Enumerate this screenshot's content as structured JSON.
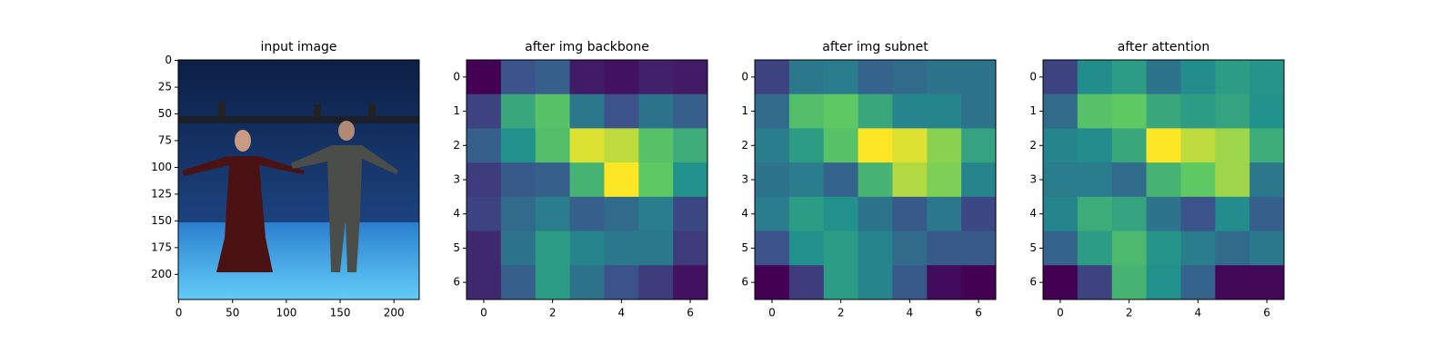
{
  "chart_data": [
    {
      "type": "image",
      "title": "input image",
      "xlim": [
        -0.5,
        223.5
      ],
      "ylim": [
        223.5,
        -0.5
      ],
      "xticks": [
        0,
        50,
        100,
        150,
        200
      ],
      "yticks": [
        0,
        25,
        50,
        75,
        100,
        125,
        150,
        175,
        200
      ]
    },
    {
      "type": "heatmap",
      "title": "after img backbone",
      "colormap": "viridis",
      "xlim": [
        -0.5,
        6.5
      ],
      "ylim": [
        6.5,
        -0.5
      ],
      "xticks": [
        0,
        2,
        4,
        6
      ],
      "yticks": [
        0,
        1,
        2,
        3,
        4,
        5,
        6
      ],
      "values": [
        [
          0.0,
          0.25,
          0.3,
          0.08,
          0.05,
          0.1,
          0.08
        ],
        [
          0.2,
          0.6,
          0.72,
          0.4,
          0.25,
          0.38,
          0.3
        ],
        [
          0.3,
          0.5,
          0.7,
          0.95,
          0.9,
          0.72,
          0.62
        ],
        [
          0.18,
          0.28,
          0.3,
          0.65,
          1.0,
          0.75,
          0.5
        ],
        [
          0.2,
          0.35,
          0.42,
          0.3,
          0.35,
          0.42,
          0.22
        ],
        [
          0.12,
          0.38,
          0.55,
          0.45,
          0.4,
          0.4,
          0.18
        ],
        [
          0.12,
          0.3,
          0.55,
          0.38,
          0.25,
          0.18,
          0.05
        ]
      ]
    },
    {
      "type": "heatmap",
      "title": "after img subnet",
      "colormap": "viridis",
      "xlim": [
        -0.5,
        6.5
      ],
      "ylim": [
        6.5,
        -0.5
      ],
      "xticks": [
        0,
        2,
        4,
        6
      ],
      "yticks": [
        0,
        1,
        2,
        3,
        4,
        5,
        6
      ],
      "values": [
        [
          0.2,
          0.4,
          0.42,
          0.32,
          0.35,
          0.38,
          0.38
        ],
        [
          0.35,
          0.7,
          0.75,
          0.6,
          0.45,
          0.45,
          0.38
        ],
        [
          0.42,
          0.55,
          0.72,
          1.0,
          0.95,
          0.82,
          0.58
        ],
        [
          0.38,
          0.42,
          0.32,
          0.65,
          0.88,
          0.8,
          0.45
        ],
        [
          0.42,
          0.55,
          0.5,
          0.38,
          0.28,
          0.4,
          0.22
        ],
        [
          0.25,
          0.5,
          0.55,
          0.45,
          0.35,
          0.28,
          0.28
        ],
        [
          0.0,
          0.18,
          0.55,
          0.45,
          0.28,
          0.03,
          0.0
        ]
      ]
    },
    {
      "type": "heatmap",
      "title": "after attention",
      "colormap": "viridis",
      "xlim": [
        -0.5,
        6.5
      ],
      "ylim": [
        6.5,
        -0.5
      ],
      "xticks": [
        0,
        2,
        4,
        6
      ],
      "yticks": [
        0,
        1,
        2,
        3,
        4,
        5,
        6
      ],
      "values": [
        [
          0.2,
          0.48,
          0.55,
          0.38,
          0.48,
          0.55,
          0.52
        ],
        [
          0.35,
          0.72,
          0.75,
          0.6,
          0.55,
          0.58,
          0.5
        ],
        [
          0.45,
          0.48,
          0.6,
          1.0,
          0.9,
          0.85,
          0.62
        ],
        [
          0.42,
          0.42,
          0.35,
          0.65,
          0.75,
          0.85,
          0.4
        ],
        [
          0.45,
          0.62,
          0.58,
          0.38,
          0.25,
          0.48,
          0.3
        ],
        [
          0.32,
          0.55,
          0.68,
          0.52,
          0.42,
          0.35,
          0.4
        ],
        [
          0.0,
          0.2,
          0.65,
          0.5,
          0.32,
          0.02,
          0.02
        ]
      ]
    }
  ]
}
